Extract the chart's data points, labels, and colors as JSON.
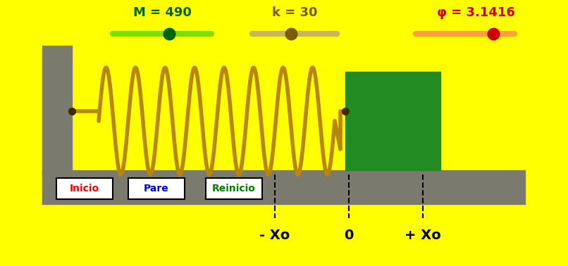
{
  "bg_color": "#FFFF00",
  "wall_color": "#7A7A6E",
  "spring_color": "#B8860B",
  "mass_color": "#228B22",
  "slider_green_color": "#7CDF00",
  "slider_tan_color": "#C8B560",
  "slider_orange_color": "#FFA040",
  "dot_green": "#006400",
  "dot_tan": "#7A5C00",
  "dot_red": "#CC0000",
  "label_M": "M = 490",
  "label_k": "k = 30",
  "label_phi": "φ = 3.1416",
  "btn_inicio": "Inicio",
  "btn_pare": "Pare",
  "btn_reinicio": "Reinicio",
  "label_minus_xo": "- Xo",
  "label_zero": "0",
  "label_plus_xo": "+ Xo"
}
